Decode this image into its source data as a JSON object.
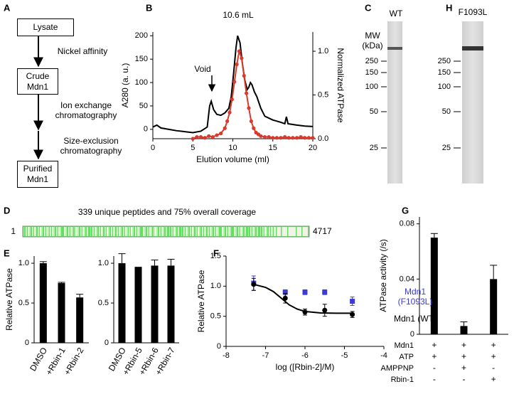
{
  "panel_labels": [
    "A",
    "B",
    "C",
    "H",
    "D",
    "E",
    "F",
    "G"
  ],
  "diagram": {
    "nodes": [
      "Lysate",
      "Crude Mdn1",
      "Purified Mdn1"
    ],
    "edges": [
      "Nickel affinity",
      "Ion exchange chromatography",
      "Size-exclusion chromatography"
    ]
  },
  "gels": [
    {
      "lane": "WT",
      "mw_label": "MW (kDa)",
      "markers": [
        250,
        150,
        100,
        50,
        25
      ]
    },
    {
      "lane": "F1093L",
      "markers": [
        250,
        150,
        100,
        50,
        25
      ]
    }
  ],
  "coverage": {
    "title": "339 unique peptides and 75% overall coverage",
    "start": 1,
    "end": 4717
  },
  "chart_data": [
    {
      "type": "line",
      "x_label": "Elution volume (ml)",
      "y_label": "A280 (a. u.)",
      "y2_label": "Normalized ATPase",
      "annotations": [
        "10.6 mL",
        "Void"
      ],
      "xlim": [
        0,
        20
      ],
      "xticks": [
        0,
        5,
        10,
        15,
        20
      ],
      "ylim": [
        -20,
        208
      ],
      "yticks": [
        0,
        50,
        100,
        150,
        200
      ],
      "y2lim": [
        0,
        1.22
      ],
      "y2ticks": [
        {
          "value": 0,
          "label": "0.0"
        },
        0.5,
        {
          "value": 1,
          "label": "1.0"
        }
      ],
      "series": [
        {
          "color": "#000000",
          "x": [
            0,
            0.5,
            1,
            2,
            3,
            4,
            5,
            6,
            6.8,
            7.1,
            7.3,
            7.6,
            8,
            8.5,
            9,
            9.5,
            9.8,
            10.1,
            10.4,
            10.6,
            10.9,
            11.2,
            11.5,
            11.8,
            12,
            12.2,
            12.4,
            12.7,
            13,
            13.5,
            14,
            15,
            16,
            16.5,
            16.7,
            16.9,
            18,
            19,
            20
          ],
          "values": [
            5,
            9,
            3,
            0,
            -3,
            -5,
            -7,
            -4,
            5,
            50,
            60,
            42,
            32,
            30,
            35,
            45,
            70,
            120,
            175,
            200,
            185,
            140,
            105,
            85,
            90,
            100,
            95,
            80,
            70,
            45,
            28,
            20,
            15,
            12,
            27,
            12,
            9,
            7,
            6
          ]
        },
        {
          "color": "#d93a2b",
          "axis": "y2",
          "markers": true,
          "x": [
            5,
            5.5,
            6,
            6.5,
            7,
            7.5,
            8,
            8.5,
            9,
            9.3,
            9.6,
            9.9,
            10.2,
            10.5,
            10.8,
            11.1,
            11.4,
            11.7,
            12,
            12.3,
            12.6,
            12.9,
            13.2,
            13.5,
            14,
            14.5,
            15,
            15.5,
            16,
            16.5,
            17,
            17.5,
            18,
            18.5,
            19,
            19.5,
            20
          ],
          "values": [
            0,
            0.02,
            0.02,
            0.01,
            0.03,
            0.02,
            0.04,
            0.06,
            0.12,
            0.2,
            0.3,
            0.45,
            0.65,
            0.85,
            1.0,
            0.92,
            0.72,
            0.52,
            0.35,
            0.2,
            0.12,
            0.07,
            0.05,
            0.03,
            0.02,
            0.02,
            0.01,
            0.01,
            0.01,
            0.02,
            0.01,
            0.01,
            0.01,
            0.02,
            0.01,
            0.01,
            0.01
          ]
        }
      ]
    },
    {
      "type": "bar",
      "y_label": "Relative ATPase",
      "color": "#000000",
      "categories": [
        "DMSO",
        "+Rbin-1",
        "+Rbin-2"
      ],
      "values": [
        1.0,
        0.75,
        0.57
      ],
      "errors": [
        0.02,
        0.01,
        0.04
      ],
      "ylim": [
        0,
        1.09
      ],
      "yticks": [
        0,
        0.5,
        {
          "value": 1,
          "label": "1.0"
        }
      ]
    },
    {
      "type": "bar",
      "color": "#000000",
      "categories": [
        "DMSO",
        "+Rbin-5",
        "+Rbin-6",
        "+Rbin-7"
      ],
      "values": [
        1.0,
        0.95,
        0.97,
        0.97
      ],
      "errors": [
        0.12,
        0,
        0.07,
        0.08
      ],
      "ylim": [
        0,
        1.09
      ],
      "yticks": [
        0,
        0.5,
        {
          "value": 1,
          "label": "1.0"
        }
      ]
    },
    {
      "type": "scatter",
      "x_label": "log ([Rbin-2]/M)",
      "y_label": "Relative ATPase",
      "xlim": [
        -8,
        -4
      ],
      "xticks": [
        -8,
        -7,
        -6,
        -5,
        -4
      ],
      "ylim": [
        0,
        1.5
      ],
      "yticks": [
        0,
        0.5,
        {
          "value": 1,
          "label": "1.0"
        },
        1.5
      ],
      "series": [
        {
          "name": "Mdn1 (F1093L)",
          "color": "#3b3bd6",
          "marker": "square",
          "x": [
            -7.3,
            -6.5,
            -6,
            -5.5,
            -4.8
          ],
          "values": [
            1.05,
            0.9,
            0.9,
            0.9,
            0.75
          ],
          "errors": [
            0.12,
            0.04,
            0.04,
            0.04,
            0.07
          ]
        },
        {
          "name": "Mdn1 (WT)",
          "color": "#000000",
          "marker": "circle",
          "x": [
            -7.3,
            -6.5,
            -6,
            -5.5,
            -4.8
          ],
          "values": [
            1.03,
            0.8,
            0.57,
            0.6,
            0.53
          ],
          "errors": [
            0.1,
            0.08,
            0.05,
            0.1,
            0.05
          ]
        }
      ],
      "fit": {
        "color": "#000000",
        "x": [
          -7.3,
          -7,
          -6.8,
          -6.6,
          -6.4,
          -6.2,
          -6,
          -5.6,
          -5.2,
          -4.8
        ],
        "values": [
          1.03,
          0.98,
          0.91,
          0.8,
          0.69,
          0.62,
          0.58,
          0.555,
          0.551,
          0.55
        ]
      }
    },
    {
      "type": "bar",
      "y_label": "ATPase activity (/s)",
      "color": "#000000",
      "values": [
        0.07,
        0.006,
        0.04
      ],
      "errors": [
        0.003,
        0.003,
        0.01
      ],
      "ylim": [
        0,
        0.085
      ],
      "yticks": [
        0,
        0.04,
        0.08
      ],
      "table": [
        {
          "label": "Mdn1",
          "cells": [
            "+",
            "+",
            "+"
          ]
        },
        {
          "label": "ATP",
          "cells": [
            "+",
            "+",
            "+"
          ]
        },
        {
          "label": "AMPPNP",
          "cells": [
            "-",
            "+",
            "-"
          ]
        },
        {
          "label": "Rbin-1",
          "cells": [
            "-",
            "-",
            "+"
          ]
        }
      ]
    }
  ]
}
